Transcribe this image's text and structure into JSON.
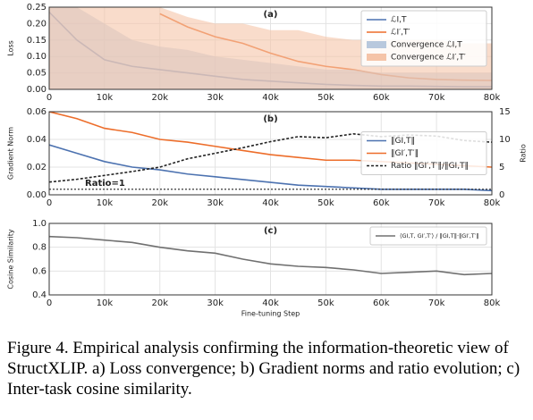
{
  "chart_data": [
    {
      "type": "line",
      "title": "(a)",
      "ylabel": "Loss",
      "legend": "upper right",
      "x": [
        0,
        5000,
        10000,
        15000,
        20000,
        25000,
        30000,
        35000,
        40000,
        45000,
        50000,
        55000,
        60000,
        65000,
        70000,
        75000,
        80000
      ],
      "xlim": [
        0,
        80000
      ],
      "xticks": [
        0,
        {
          "value": 10000,
          "label": "10k"
        },
        {
          "value": 20000,
          "label": "20k"
        },
        {
          "value": 30000,
          "label": "30k"
        },
        {
          "value": 40000,
          "label": "40k"
        },
        {
          "value": 50000,
          "label": "50k"
        },
        {
          "value": 60000,
          "label": "60k"
        },
        {
          "value": 70000,
          "label": "70k"
        },
        {
          "value": 80000,
          "label": "80k"
        }
      ],
      "ylim": [
        0,
        0.25
      ],
      "yticks": [
        {
          "value": 0,
          "label": "0.00"
        },
        0.05,
        {
          "value": 0.1,
          "label": "0.10"
        },
        0.15,
        {
          "value": 0.2,
          "label": "0.20"
        },
        0.25
      ],
      "series": [
        {
          "name": "ℒI,T",
          "color": "#4c72b0",
          "values": [
            0.235,
            0.15,
            0.09,
            0.07,
            0.06,
            0.05,
            0.04,
            0.03,
            0.025,
            0.02,
            0.015,
            0.012,
            0.01,
            0.01,
            0.009,
            0.008,
            0.008
          ]
        },
        {
          "name": "ℒI′,T′",
          "color": "#ed6d2a",
          "values": [
            null,
            null,
            null,
            null,
            0.23,
            0.19,
            0.16,
            0.14,
            0.11,
            0.085,
            0.07,
            0.06,
            0.045,
            0.035,
            0.03,
            0.028,
            0.027
          ]
        },
        {
          "name": "Convergence ℒI,T",
          "color": "#b8c8dd",
          "band": true,
          "values": [
            0.25,
            0.25,
            0.2,
            0.15,
            0.13,
            0.12,
            0.1,
            0.09,
            0.08,
            0.07,
            0.06,
            0.06,
            0.05,
            0.05,
            0.05,
            0.05,
            0.05
          ]
        },
        {
          "name": "Convergence ℒI′,T′",
          "color": "#f5c4a8",
          "band": true,
          "values": [
            0.25,
            0.25,
            0.25,
            0.25,
            0.25,
            0.22,
            0.2,
            0.2,
            0.18,
            0.18,
            0.16,
            0.15,
            0.15,
            0.15,
            0.15,
            0.14,
            0.14
          ]
        }
      ]
    },
    {
      "type": "line",
      "title": "(b)",
      "ylabel": "Gradient Norm",
      "y2label": "Ratio",
      "legend": "center right",
      "x": [
        0,
        5000,
        10000,
        15000,
        20000,
        25000,
        30000,
        35000,
        40000,
        45000,
        50000,
        55000,
        60000,
        65000,
        70000,
        75000,
        80000
      ],
      "xlim": [
        0,
        80000
      ],
      "xticks": [
        0,
        {
          "value": 10000,
          "label": "10k"
        },
        {
          "value": 20000,
          "label": "20k"
        },
        {
          "value": 30000,
          "label": "30k"
        },
        {
          "value": 40000,
          "label": "40k"
        },
        {
          "value": 50000,
          "label": "50k"
        },
        {
          "value": 60000,
          "label": "60k"
        },
        {
          "value": 70000,
          "label": "70k"
        },
        {
          "value": 80000,
          "label": "80k"
        }
      ],
      "ylim": [
        0,
        0.06
      ],
      "yticks": [
        {
          "value": 0,
          "label": "0.00"
        },
        0.02,
        0.04,
        0.06
      ],
      "y2lim": [
        0,
        15
      ],
      "y2ticks": [
        0,
        5,
        10,
        15
      ],
      "annotations": [
        {
          "text": "Ratio=1",
          "value": 1
        }
      ],
      "series": [
        {
          "name": "‖GI,T‖",
          "color": "#4c72b0",
          "values": [
            0.036,
            0.03,
            0.024,
            0.02,
            0.018,
            0.015,
            0.013,
            0.011,
            0.009,
            0.007,
            0.006,
            0.005,
            0.004,
            0.004,
            0.004,
            0.004,
            0.003
          ]
        },
        {
          "name": "‖GI′,T′‖",
          "color": "#ed6d2a",
          "values": [
            0.06,
            0.055,
            0.048,
            0.045,
            0.04,
            0.038,
            0.035,
            0.032,
            0.029,
            0.027,
            0.025,
            0.025,
            0.024,
            0.023,
            0.022,
            0.021,
            0.02
          ]
        },
        {
          "name": "Ratio ‖GI′,T′‖/‖GI,T‖",
          "color": "#222222",
          "dash": true,
          "axis": "y2",
          "values": [
            2.3,
            2.8,
            3.5,
            4.2,
            5,
            6.5,
            7.5,
            8.5,
            9.6,
            10.5,
            10.3,
            11,
            10.5,
            10.8,
            10.6,
            9.8,
            9.5
          ]
        }
      ]
    },
    {
      "type": "line",
      "title": "(c)",
      "ylabel": "Cosine Similarity",
      "xlabel": "Fine-tuning Step",
      "legend": "upper right",
      "x": [
        0,
        5000,
        10000,
        15000,
        20000,
        25000,
        30000,
        35000,
        40000,
        45000,
        50000,
        55000,
        60000,
        65000,
        70000,
        75000,
        80000
      ],
      "xlim": [
        0,
        80000
      ],
      "xticks": [
        0,
        {
          "value": 10000,
          "label": "10k"
        },
        {
          "value": 20000,
          "label": "20k"
        },
        {
          "value": 30000,
          "label": "30k"
        },
        {
          "value": 40000,
          "label": "40k"
        },
        {
          "value": 50000,
          "label": "50k"
        },
        {
          "value": 60000,
          "label": "60k"
        },
        {
          "value": 70000,
          "label": "70k"
        },
        {
          "value": 80000,
          "label": "80k"
        }
      ],
      "ylim": [
        0.4,
        1.0
      ],
      "yticks": [
        0.4,
        0.6,
        0.8,
        {
          "value": 1.0,
          "label": "1.0"
        }
      ],
      "series": [
        {
          "name": "⟨GI,T, GI′,T′⟩ / ‖GI,T‖·‖GI′,T′‖",
          "color": "#707070",
          "values": [
            0.89,
            0.88,
            0.86,
            0.84,
            0.8,
            0.77,
            0.75,
            0.7,
            0.66,
            0.64,
            0.63,
            0.61,
            0.58,
            0.59,
            0.6,
            0.57,
            0.58
          ]
        }
      ]
    }
  ],
  "caption": "Figure 4. Empirical analysis confirming the information-theoretic view of StructXLIP. a) Loss convergence; b) Gradient norms and ratio evolution; c) Inter-task cosine similarity."
}
